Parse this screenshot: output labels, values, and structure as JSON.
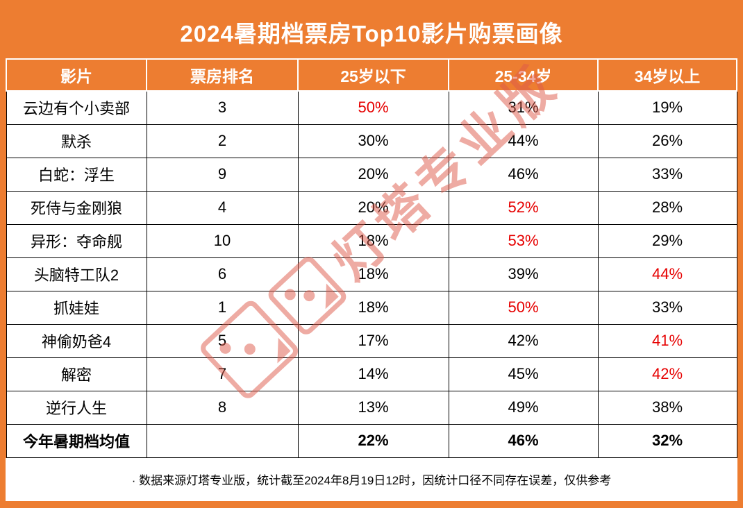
{
  "title": "2024暑期档票房Top10影片购票画像",
  "table": {
    "headers": [
      "影片",
      "票房排名",
      "25岁以下",
      "25-34岁",
      "34岁以上"
    ],
    "rows": [
      {
        "cells": [
          "云边有个小卖部",
          "3",
          "50%",
          "31%",
          "19%"
        ]
      },
      {
        "cells": [
          "默杀",
          "2",
          "30%",
          "44%",
          "26%"
        ]
      },
      {
        "cells": [
          "白蛇：浮生",
          "9",
          "20%",
          "46%",
          "33%"
        ]
      },
      {
        "cells": [
          "死侍与金刚狼",
          "4",
          "20%",
          "52%",
          "28%"
        ]
      },
      {
        "cells": [
          "异形：夺命舰",
          "10",
          "18%",
          "53%",
          "29%"
        ]
      },
      {
        "cells": [
          "头脑特工队2",
          "6",
          "18%",
          "39%",
          "44%"
        ]
      },
      {
        "cells": [
          "抓娃娃",
          "1",
          "18%",
          "50%",
          "33%"
        ]
      },
      {
        "cells": [
          "神偷奶爸4",
          "5",
          "17%",
          "42%",
          "41%"
        ]
      },
      {
        "cells": [
          "解密",
          "7",
          "14%",
          "45%",
          "42%"
        ]
      },
      {
        "cells": [
          "逆行人生",
          "8",
          "13%",
          "49%",
          "38%"
        ]
      },
      {
        "cells": [
          "今年暑期档均值",
          "",
          "22%",
          "46%",
          "32%"
        ]
      }
    ],
    "red_cells": [
      [
        0,
        2
      ],
      [
        3,
        3
      ],
      [
        4,
        3
      ],
      [
        5,
        4
      ],
      [
        6,
        3
      ],
      [
        7,
        4
      ],
      [
        8,
        4
      ]
    ],
    "bold_rows": [
      10
    ]
  },
  "footer_note": "·  数据来源灯塔专业版，统计截至2024年8月19日12时，因统计口径不同存在误差，仅供参考",
  "watermark": {
    "text": "灯塔专业版",
    "logo_icon": "dengta-dice-logo"
  },
  "colors": {
    "accent_orange": "#ED7D31",
    "highlight_red": "#E60000",
    "watermark_red": "#DE5A4A",
    "cell_white": "#FFFFFF",
    "text_black": "#000000"
  },
  "chart_data": {
    "type": "table",
    "title": "2024暑期档票房Top10影片购票画像",
    "columns": [
      "影片",
      "票房排名",
      "25岁以下",
      "25-34岁",
      "34岁以上"
    ],
    "unit": "percent",
    "rows": [
      [
        "云边有个小卖部",
        3,
        50,
        31,
        19
      ],
      [
        "默杀",
        2,
        30,
        44,
        26
      ],
      [
        "白蛇：浮生",
        9,
        20,
        46,
        33
      ],
      [
        "死侍与金刚狼",
        4,
        20,
        52,
        28
      ],
      [
        "异形：夺命舰",
        10,
        18,
        53,
        29
      ],
      [
        "头脑特工队2",
        6,
        18,
        39,
        44
      ],
      [
        "抓娃娃",
        1,
        18,
        50,
        33
      ],
      [
        "神偷奶爸4",
        5,
        17,
        42,
        41
      ],
      [
        "解密",
        7,
        14,
        45,
        42
      ],
      [
        "逆行人生",
        8,
        13,
        49,
        38
      ],
      [
        "今年暑期档均值",
        null,
        22,
        46,
        32
      ]
    ],
    "note": "数据来源灯塔专业版，统计截至2024年8月19日12时，因统计口径不同存在误差，仅供参考"
  }
}
